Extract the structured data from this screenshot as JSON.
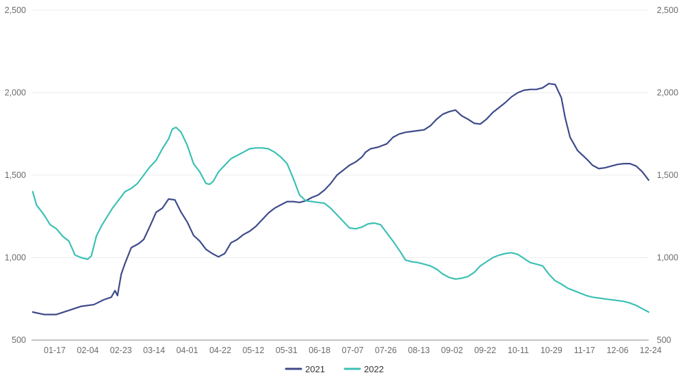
{
  "chart_data": {
    "type": "line",
    "x_categories": [
      "01-17",
      "02-04",
      "02-23",
      "03-14",
      "04-01",
      "04-22",
      "05-12",
      "05-31",
      "06-18",
      "07-07",
      "07-26",
      "08-13",
      "09-02",
      "09-22",
      "10-11",
      "10-29",
      "11-17",
      "12-06",
      "12-24"
    ],
    "y_ticks_left": [
      "2,500",
      "2,000",
      "1,500",
      "1,000",
      "500"
    ],
    "y_ticks_right": [
      "2,500",
      "2,000",
      "1,500",
      "1,000",
      "500"
    ],
    "ylim": [
      500,
      2500
    ],
    "grid": true,
    "legend_position": "bottom-center",
    "series": [
      {
        "name": "2021",
        "color": "#3d4a8a",
        "points": [
          [
            1,
            670
          ],
          [
            10,
            655
          ],
          [
            20,
            655
          ],
          [
            30,
            680
          ],
          [
            40,
            705
          ],
          [
            50,
            715
          ],
          [
            58,
            745
          ],
          [
            64,
            760
          ],
          [
            67,
            800
          ],
          [
            69,
            770
          ],
          [
            72,
            900
          ],
          [
            75,
            965
          ],
          [
            80,
            1060
          ],
          [
            86,
            1085
          ],
          [
            90,
            1110
          ],
          [
            95,
            1190
          ],
          [
            100,
            1275
          ],
          [
            105,
            1300
          ],
          [
            110,
            1355
          ],
          [
            115,
            1350
          ],
          [
            120,
            1275
          ],
          [
            125,
            1215
          ],
          [
            130,
            1135
          ],
          [
            135,
            1100
          ],
          [
            140,
            1050
          ],
          [
            145,
            1025
          ],
          [
            150,
            1005
          ],
          [
            155,
            1025
          ],
          [
            160,
            1090
          ],
          [
            165,
            1110
          ],
          [
            170,
            1140
          ],
          [
            175,
            1160
          ],
          [
            180,
            1190
          ],
          [
            185,
            1230
          ],
          [
            190,
            1270
          ],
          [
            195,
            1300
          ],
          [
            200,
            1320
          ],
          [
            205,
            1340
          ],
          [
            210,
            1340
          ],
          [
            215,
            1335
          ],
          [
            220,
            1345
          ],
          [
            225,
            1365
          ],
          [
            230,
            1380
          ],
          [
            235,
            1410
          ],
          [
            240,
            1450
          ],
          [
            245,
            1500
          ],
          [
            250,
            1530
          ],
          [
            255,
            1560
          ],
          [
            260,
            1580
          ],
          [
            265,
            1610
          ],
          [
            268,
            1640
          ],
          [
            272,
            1660
          ],
          [
            278,
            1670
          ],
          [
            285,
            1690
          ],
          [
            290,
            1730
          ],
          [
            295,
            1750
          ],
          [
            300,
            1760
          ],
          [
            305,
            1765
          ],
          [
            310,
            1770
          ],
          [
            315,
            1775
          ],
          [
            320,
            1800
          ],
          [
            325,
            1840
          ],
          [
            330,
            1870
          ],
          [
            335,
            1885
          ],
          [
            340,
            1895
          ],
          [
            345,
            1860
          ],
          [
            350,
            1840
          ],
          [
            355,
            1815
          ],
          [
            360,
            1810
          ],
          [
            365,
            1840
          ],
          [
            370,
            1880
          ],
          [
            375,
            1910
          ],
          [
            380,
            1940
          ],
          [
            385,
            1975
          ],
          [
            390,
            2000
          ],
          [
            395,
            2015
          ],
          [
            400,
            2020
          ],
          [
            405,
            2020
          ],
          [
            410,
            2030
          ],
          [
            415,
            2055
          ],
          [
            420,
            2050
          ],
          [
            425,
            1970
          ],
          [
            428,
            1850
          ],
          [
            432,
            1730
          ],
          [
            438,
            1650
          ],
          [
            445,
            1600
          ],
          [
            450,
            1560
          ],
          [
            455,
            1540
          ],
          [
            460,
            1545
          ],
          [
            465,
            1555
          ],
          [
            470,
            1565
          ],
          [
            475,
            1570
          ],
          [
            480,
            1570
          ],
          [
            485,
            1555
          ],
          [
            490,
            1520
          ],
          [
            495,
            1470
          ]
        ]
      },
      {
        "name": "2022",
        "color": "#3cc0b4",
        "points": [
          [
            1,
            1400
          ],
          [
            4,
            1320
          ],
          [
            10,
            1260
          ],
          [
            15,
            1200
          ],
          [
            20,
            1175
          ],
          [
            25,
            1130
          ],
          [
            30,
            1100
          ],
          [
            35,
            1015
          ],
          [
            40,
            1000
          ],
          [
            45,
            990
          ],
          [
            48,
            1010
          ],
          [
            52,
            1130
          ],
          [
            56,
            1190
          ],
          [
            60,
            1240
          ],
          [
            65,
            1300
          ],
          [
            70,
            1350
          ],
          [
            75,
            1400
          ],
          [
            80,
            1420
          ],
          [
            85,
            1450
          ],
          [
            90,
            1500
          ],
          [
            95,
            1550
          ],
          [
            100,
            1590
          ],
          [
            105,
            1660
          ],
          [
            110,
            1720
          ],
          [
            113,
            1780
          ],
          [
            116,
            1790
          ],
          [
            120,
            1760
          ],
          [
            125,
            1680
          ],
          [
            130,
            1570
          ],
          [
            135,
            1520
          ],
          [
            140,
            1450
          ],
          [
            143,
            1445
          ],
          [
            146,
            1465
          ],
          [
            150,
            1520
          ],
          [
            155,
            1560
          ],
          [
            160,
            1600
          ],
          [
            165,
            1620
          ],
          [
            170,
            1640
          ],
          [
            175,
            1660
          ],
          [
            180,
            1665
          ],
          [
            185,
            1665
          ],
          [
            190,
            1660
          ],
          [
            195,
            1640
          ],
          [
            200,
            1610
          ],
          [
            205,
            1570
          ],
          [
            210,
            1480
          ],
          [
            215,
            1380
          ],
          [
            220,
            1345
          ],
          [
            225,
            1340
          ],
          [
            230,
            1335
          ],
          [
            235,
            1330
          ],
          [
            240,
            1300
          ],
          [
            245,
            1260
          ],
          [
            250,
            1220
          ],
          [
            255,
            1180
          ],
          [
            260,
            1175
          ],
          [
            265,
            1185
          ],
          [
            270,
            1205
          ],
          [
            275,
            1210
          ],
          [
            280,
            1200
          ],
          [
            285,
            1150
          ],
          [
            290,
            1100
          ],
          [
            295,
            1045
          ],
          [
            300,
            985
          ],
          [
            305,
            975
          ],
          [
            310,
            970
          ],
          [
            315,
            960
          ],
          [
            320,
            950
          ],
          [
            325,
            930
          ],
          [
            330,
            900
          ],
          [
            335,
            880
          ],
          [
            340,
            870
          ],
          [
            345,
            875
          ],
          [
            350,
            885
          ],
          [
            355,
            910
          ],
          [
            360,
            950
          ],
          [
            365,
            975
          ],
          [
            370,
            1000
          ],
          [
            375,
            1015
          ],
          [
            380,
            1025
          ],
          [
            385,
            1030
          ],
          [
            390,
            1020
          ],
          [
            395,
            995
          ],
          [
            400,
            970
          ],
          [
            405,
            960
          ],
          [
            410,
            950
          ],
          [
            415,
            900
          ],
          [
            420,
            860
          ],
          [
            425,
            840
          ],
          [
            430,
            815
          ],
          [
            435,
            800
          ],
          [
            440,
            785
          ],
          [
            445,
            770
          ],
          [
            450,
            760
          ],
          [
            455,
            755
          ],
          [
            460,
            750
          ],
          [
            465,
            745
          ],
          [
            470,
            740
          ],
          [
            475,
            735
          ],
          [
            480,
            725
          ],
          [
            485,
            710
          ],
          [
            490,
            690
          ],
          [
            495,
            670
          ]
        ]
      }
    ]
  }
}
